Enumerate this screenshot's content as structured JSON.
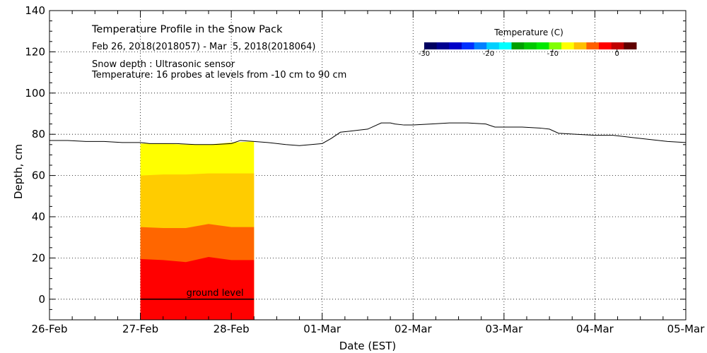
{
  "chart_data": {
    "type": "area",
    "title": "Temperature Profile in the Snow Pack",
    "date_range": "Feb 26, 2018(2018057) - Mar  5, 2018(2018064)",
    "annotations": [
      "Snow depth : Ultrasonic sensor",
      "Temperature: 16 probes at levels from -10 cm to 90 cm"
    ],
    "ground_label": "ground level",
    "xlabel": "Date (EST)",
    "ylabel": "Depth, cm",
    "x_ticks": [
      "26-Feb",
      "27-Feb",
      "28-Feb",
      "01-Mar",
      "02-Mar",
      "03-Mar",
      "04-Mar",
      "05-Mar"
    ],
    "xlim": [
      0,
      7
    ],
    "ylim": [
      -10,
      140
    ],
    "y_ticks": [
      0,
      20,
      40,
      60,
      80,
      100,
      120,
      140
    ],
    "grid": true,
    "snow_depth": {
      "x": [
        0.0,
        0.2,
        0.4,
        0.6,
        0.8,
        1.0,
        1.1,
        1.25,
        1.4,
        1.6,
        1.8,
        2.0,
        2.1,
        2.25,
        2.4,
        2.6,
        2.75,
        3.0,
        3.1,
        3.2,
        3.3,
        3.5,
        3.65,
        3.75,
        3.8,
        3.9,
        4.0,
        4.2,
        4.4,
        4.6,
        4.8,
        4.9,
        5.0,
        5.2,
        5.4,
        5.5,
        5.6,
        5.8,
        6.0,
        6.2,
        6.4,
        6.6,
        6.8,
        7.0
      ],
      "depth": [
        77,
        77,
        76.5,
        76.5,
        76,
        76,
        75.5,
        75.5,
        75.5,
        75,
        75,
        75.5,
        77,
        76.5,
        76,
        75,
        74.5,
        75.5,
        78,
        81,
        81.5,
        82.5,
        85.5,
        85.5,
        85,
        84.5,
        84.5,
        85,
        85.5,
        85.5,
        85,
        83.5,
        83.5,
        83.5,
        83,
        82.5,
        80.5,
        80,
        79.5,
        79.5,
        78.5,
        77.5,
        76.5,
        76
      ]
    },
    "temperature_field": {
      "x_start": 1.0,
      "x_end": 2.25,
      "x": [
        1.0,
        1.25,
        1.5,
        1.75,
        2.0,
        2.25
      ],
      "bands": [
        {
          "temperature_c": -0.5,
          "color": "#ff0000",
          "top": [
            19.5,
            19,
            18,
            20.5,
            19,
            19
          ]
        },
        {
          "temperature_c": -1.5,
          "color": "#ff6600",
          "top": [
            35,
            34.5,
            34.5,
            36.5,
            35,
            35
          ]
        },
        {
          "temperature_c": -2.5,
          "color": "#ffcc00",
          "top": [
            60,
            60.5,
            60.5,
            61,
            61,
            61
          ]
        },
        {
          "temperature_c": -3.5,
          "color": "#ffff00",
          "top": [
            75.5,
            75.5,
            75,
            75,
            76,
            76.5
          ]
        }
      ],
      "bottom": -10
    },
    "colorbar": {
      "title": "Temperature (C)",
      "range": [
        -30,
        3
      ],
      "ticks": [
        -30,
        -20,
        -10,
        0
      ],
      "colors": [
        "#000060",
        "#000090",
        "#0000c8",
        "#0030ff",
        "#0080ff",
        "#00d0ff",
        "#00ffff",
        "#00a000",
        "#00c800",
        "#00e800",
        "#80ff00",
        "#ffff00",
        "#ffc000",
        "#ff6000",
        "#ff0000",
        "#c00000",
        "#600000"
      ]
    }
  }
}
